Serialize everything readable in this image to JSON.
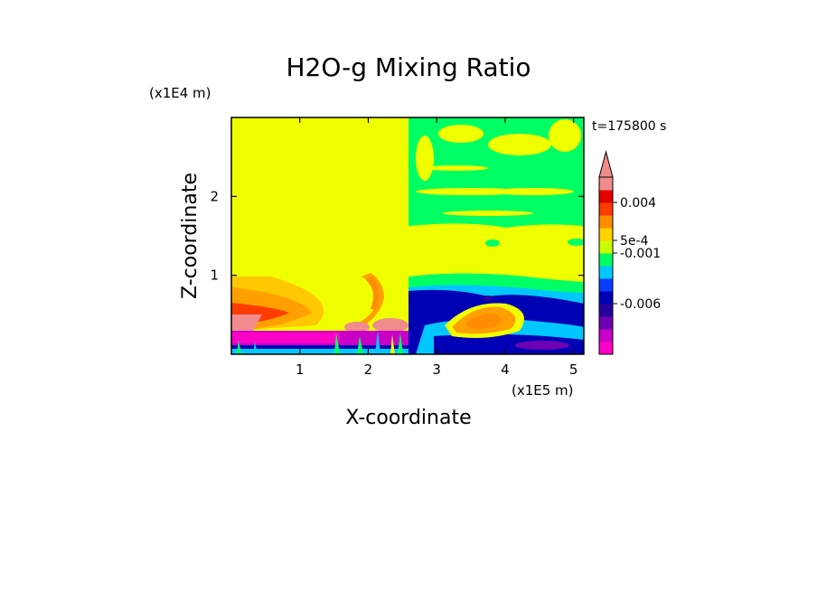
{
  "chart_data": {
    "type": "heatmap",
    "title": "H2O-g Mixing Ratio",
    "xlabel": "X-coordinate",
    "ylabel": "Z-coordinate",
    "x_unit": "(x1E5 m)",
    "y_unit": "(x1E4 m)",
    "time_label": "t=175800 s",
    "xlim": [
      0,
      5.15
    ],
    "ylim": [
      0,
      3.0
    ],
    "x_ticks": [
      "1",
      "2",
      "3",
      "4",
      "5"
    ],
    "y_ticks": [
      "1",
      "2"
    ],
    "colorbar": {
      "colors": [
        "#ff00c8",
        "#c800c8",
        "#6e00b4",
        "#2800a0",
        "#0000b4",
        "#0a3cff",
        "#00c8ff",
        "#00ff64",
        "#c8ff00",
        "#ffd200",
        "#ff8c00",
        "#ff3c00",
        "#e60000",
        "#f08c8c"
      ],
      "tick_labels": [
        "0.004",
        "5e-4",
        "-0.001",
        "-0.006"
      ],
      "extend": "max"
    },
    "regions": [
      {
        "label": "background",
        "color": "#f0ff00",
        "x": [
          0,
          5.15
        ],
        "y": [
          0,
          3.0
        ]
      },
      {
        "label": "upper-right green bands",
        "color": "#00ff64",
        "x": [
          2.55,
          5.15
        ],
        "y": [
          1.35,
          3.0
        ]
      },
      {
        "label": "left orange layer",
        "color": "#ffa000",
        "x": [
          0,
          1.1
        ],
        "y": [
          0.3,
          1.0
        ]
      },
      {
        "label": "left red core",
        "color": "#ff3c00",
        "x": [
          0,
          0.6
        ],
        "y": [
          0.4,
          0.75
        ]
      },
      {
        "label": "bottom magenta layer",
        "color": "#c800c8",
        "x": [
          0,
          2.55
        ],
        "y": [
          0,
          0.3
        ]
      },
      {
        "label": "right blue lower region",
        "color": "#0000b4",
        "x": [
          2.55,
          5.15
        ],
        "y": [
          0,
          1.0
        ]
      },
      {
        "label": "right orange plume",
        "color": "#ffa000",
        "x": [
          3.1,
          3.9
        ],
        "y": [
          0.35,
          0.6
        ]
      }
    ]
  }
}
